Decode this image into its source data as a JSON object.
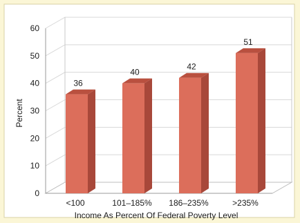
{
  "chart_data": {
    "type": "bar",
    "title": "",
    "xlabel": "Income As Percent Of Federal Poverty Level",
    "ylabel": "Percent",
    "ylim": [
      0,
      60
    ],
    "yticks": [
      0,
      10,
      20,
      30,
      40,
      50,
      60
    ],
    "grid": true,
    "categories": [
      "<100",
      "101–185%",
      "186–235%",
      ">235%"
    ],
    "series": [
      {
        "values": [
          36,
          40,
          42,
          51
        ]
      }
    ],
    "data_labels": [
      "36",
      "40",
      "42",
      "51"
    ],
    "colors": {
      "page_background": "#fbf6d6",
      "plot_background": "#ffffff",
      "bar_front": "#dc6e5b",
      "bar_side": "#a8483a",
      "bar_top": "#b9503f",
      "grid": "#d8d8d8",
      "floor": "#ffffff"
    }
  }
}
